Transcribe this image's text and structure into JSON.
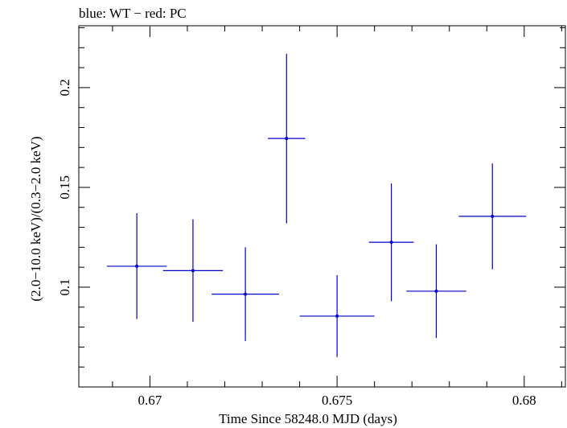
{
  "chart_data": {
    "type": "scatter",
    "title": "blue: WT − red: PC",
    "xlabel": "Time Since 58248.0 MJD (days)",
    "ylabel": "(2.0−10.0 keV)/(0.3−2.0 keV)",
    "xlim": [
      0.6681,
      0.6811
    ],
    "ylim": [
      0.05,
      0.231
    ],
    "x_ticks": [
      {
        "value": 0.67,
        "label": "0.67"
      },
      {
        "value": 0.675,
        "label": "0.675"
      },
      {
        "value": 0.68,
        "label": "0.68"
      }
    ],
    "y_ticks": [
      {
        "value": 0.1,
        "label": "0.1"
      },
      {
        "value": 0.15,
        "label": "0.15"
      },
      {
        "value": 0.2,
        "label": "0.2"
      }
    ],
    "series": [
      {
        "name": "WT",
        "color": "#0000cc",
        "points": [
          {
            "x": 0.66965,
            "xerr": 0.0008,
            "y": 0.1105,
            "yerr": 0.0265
          },
          {
            "x": 0.67115,
            "xerr": 0.0008,
            "y": 0.1083,
            "yerr": 0.0257
          },
          {
            "x": 0.67255,
            "xerr": 0.0009,
            "y": 0.0965,
            "yerr": 0.0235
          },
          {
            "x": 0.67365,
            "xerr": 0.0005,
            "y": 0.1745,
            "yerr": 0.0425
          },
          {
            "x": 0.675,
            "xerr": 0.001,
            "y": 0.0855,
            "yerr": 0.0205
          },
          {
            "x": 0.67645,
            "xerr": 0.0006,
            "y": 0.1225,
            "yerr": 0.0295
          },
          {
            "x": 0.67765,
            "xerr": 0.0008,
            "y": 0.098,
            "yerr": 0.0235
          },
          {
            "x": 0.67915,
            "xerr": 0.0009,
            "y": 0.1355,
            "yerr": 0.0265
          }
        ]
      },
      {
        "name": "PC",
        "color": "#cc0000",
        "points": []
      }
    ]
  }
}
